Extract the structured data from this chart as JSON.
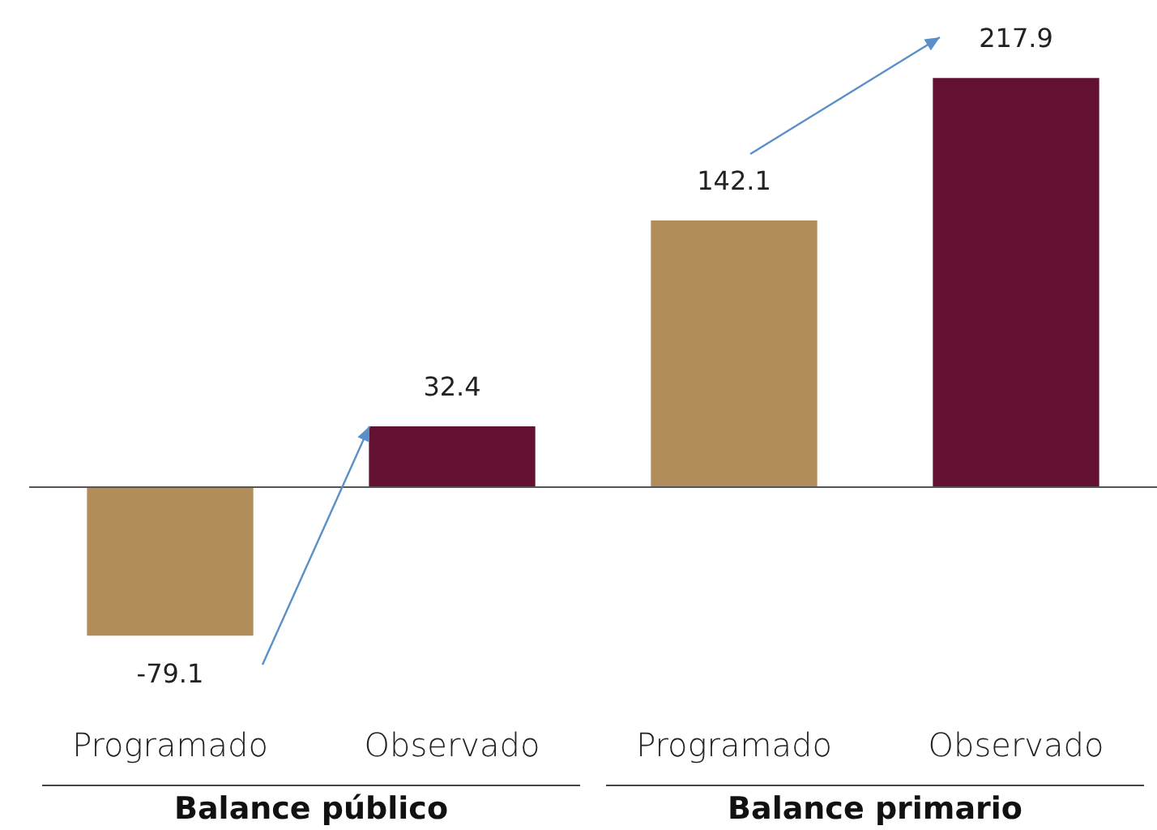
{
  "chart_data": {
    "type": "bar",
    "categories": [
      "Programado",
      "Observado",
      "Programado",
      "Observado"
    ],
    "values": [
      -79.1,
      32.4,
      142.1,
      217.9
    ],
    "colors": [
      "#b08d5a",
      "#621132",
      "#b08d5a",
      "#621132"
    ],
    "data_labels": true,
    "annotations": [
      "Balance público",
      "Balance primario"
    ]
  }
}
